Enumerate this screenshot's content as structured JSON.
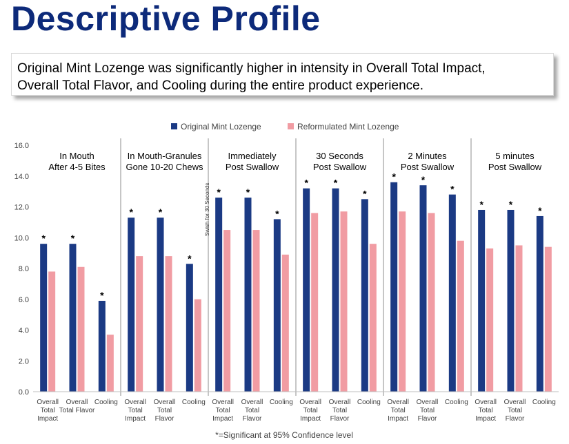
{
  "page": {
    "title": "Descriptive Profile",
    "callout_lines": [
      "Original Mint Lozenge was significantly higher in intensity in Overall Total Impact,",
      "Overall Total Flavor, and Cooling during the entire product experience."
    ],
    "footnote": "*=Significant at 95% Confidence level",
    "side_note": "Swish for 30 Seconds"
  },
  "colors": {
    "title": "#0d2a7a",
    "original": "#1b3a84",
    "reformulated": "#f19ca3",
    "axis_text": "#404040",
    "divider": "#8c8c8c"
  },
  "chart_data": {
    "type": "bar",
    "ylim": [
      0,
      16
    ],
    "yticks": [
      "0.0",
      "2.0",
      "4.0",
      "6.0",
      "8.0",
      "10.0",
      "12.0",
      "14.0",
      "16.0"
    ],
    "legend": [
      "Original Mint Lozenge",
      "Reformulated Mint Lozenge"
    ],
    "legend_position": "top-center",
    "grid": false,
    "significance_marker": "*",
    "groups": [
      {
        "label": [
          "In Mouth",
          "After 4-5 Bites"
        ],
        "categories": [
          [
            "Overall",
            "Total",
            "Impact"
          ],
          [
            "Overall",
            "Total Flavor"
          ],
          [
            "Cooling"
          ]
        ],
        "series": [
          {
            "name": "Original Mint Lozenge",
            "values": [
              9.6,
              9.6,
              5.9
            ]
          },
          {
            "name": "Reformulated Mint Lozenge",
            "values": [
              7.8,
              8.1,
              3.7
            ]
          }
        ],
        "significant": [
          true,
          true,
          true
        ]
      },
      {
        "label": [
          "In Mouth-Granules",
          "Gone 10-20 Chews"
        ],
        "categories": [
          [
            "Overall",
            "Total",
            "Impact"
          ],
          [
            "Overall",
            "Total",
            "Flavor"
          ],
          [
            "Cooling"
          ]
        ],
        "series": [
          {
            "name": "Original Mint Lozenge",
            "values": [
              11.3,
              11.3,
              8.3
            ]
          },
          {
            "name": "Reformulated Mint Lozenge",
            "values": [
              8.8,
              8.8,
              6.0
            ]
          }
        ],
        "significant": [
          true,
          true,
          true
        ]
      },
      {
        "label": [
          "Immediately",
          "Post Swallow"
        ],
        "categories": [
          [
            "Overall",
            "Total",
            "Impact"
          ],
          [
            "Overall",
            "Total",
            "Flavor"
          ],
          [
            "Cooling"
          ]
        ],
        "series": [
          {
            "name": "Original Mint Lozenge",
            "values": [
              12.6,
              12.6,
              11.2
            ]
          },
          {
            "name": "Reformulated Mint Lozenge",
            "values": [
              10.5,
              10.5,
              8.9
            ]
          }
        ],
        "significant": [
          true,
          true,
          true
        ]
      },
      {
        "label": [
          "30 Seconds",
          "Post Swallow"
        ],
        "categories": [
          [
            "Overall",
            "Total",
            "Impact"
          ],
          [
            "Overall",
            "Total",
            "Flavor"
          ],
          [
            "Cooling"
          ]
        ],
        "series": [
          {
            "name": "Original Mint Lozenge",
            "values": [
              13.2,
              13.2,
              12.5
            ]
          },
          {
            "name": "Reformulated Mint Lozenge",
            "values": [
              11.6,
              11.7,
              9.6
            ]
          }
        ],
        "significant": [
          true,
          true,
          true
        ]
      },
      {
        "label": [
          "2 Minutes",
          "Post Swallow"
        ],
        "categories": [
          [
            "Overall",
            "Total",
            "Impact"
          ],
          [
            "Overall",
            "Total",
            "Flavor"
          ],
          [
            "Cooling"
          ]
        ],
        "series": [
          {
            "name": "Original Mint Lozenge",
            "values": [
              13.6,
              13.4,
              12.8
            ]
          },
          {
            "name": "Reformulated Mint Lozenge",
            "values": [
              11.7,
              11.6,
              9.8
            ]
          }
        ],
        "significant": [
          true,
          true,
          true
        ]
      },
      {
        "label": [
          "5 minutes",
          "Post Swallow"
        ],
        "categories": [
          [
            "Overall",
            "Total",
            "Impact"
          ],
          [
            "Overall",
            "Total",
            "Flavor"
          ],
          [
            "Cooling"
          ]
        ],
        "series": [
          {
            "name": "Original Mint Lozenge",
            "values": [
              11.8,
              11.8,
              11.4
            ]
          },
          {
            "name": "Reformulated Mint Lozenge",
            "values": [
              9.3,
              9.5,
              9.4
            ]
          }
        ],
        "significant": [
          true,
          true,
          true
        ]
      }
    ]
  }
}
